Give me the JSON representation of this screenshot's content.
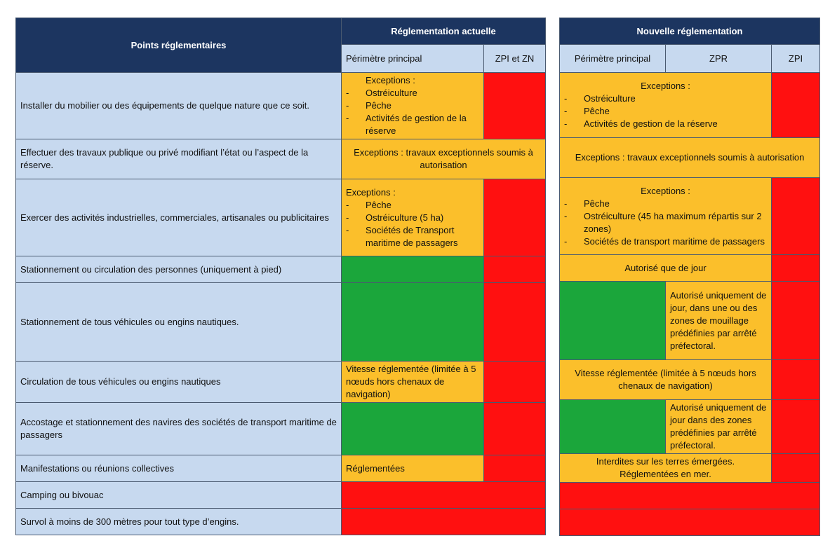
{
  "header": {
    "points": "Points réglementaires",
    "actuelle": "Réglementation actuelle",
    "nouvelle": "Nouvelle réglementation",
    "perimetre": "Périmètre principal",
    "zpi_zn": "ZPI et ZN",
    "zpr": "ZPR",
    "zpi": "ZPI"
  },
  "rows": [
    {
      "label": "Installer du mobilier ou des équipements de quelque nature que ce soit.",
      "actuelle": {
        "title": "Exceptions :",
        "items": [
          "Ostréiculture",
          "Pêche",
          "Activités de gestion de la réserve"
        ]
      },
      "nouvelle": {
        "title": "Exceptions :",
        "items": [
          "Ostréiculture",
          "Pêche",
          "Activités de gestion de la réserve"
        ]
      }
    },
    {
      "label": "Effectuer des travaux publique ou privé modifiant l’état ou l’aspect de la réserve.",
      "actuelle": {
        "text": "Exceptions : travaux exceptionnels soumis à autorisation"
      },
      "nouvelle": {
        "text": "Exceptions : travaux exceptionnels soumis à autorisation"
      }
    },
    {
      "label": "Exercer des activités industrielles, commerciales, artisanales ou publicitaires",
      "actuelle": {
        "title": "Exceptions :",
        "items": [
          "Pêche",
          "Ostréiculture (5 ha)",
          "Sociétés de Transport maritime de passagers"
        ]
      },
      "nouvelle": {
        "title": "Exceptions :",
        "items": [
          "Pêche",
          "Ostréiculture (45 ha maximum répartis sur 2 zones)",
          "Sociétés de transport maritime de passagers"
        ]
      }
    },
    {
      "label": "Stationnement ou circulation des personnes (uniquement à pied)",
      "nouvelle": {
        "text": "Autorisé que de jour"
      }
    },
    {
      "label": "Stationnement de tous véhicules ou engins nautiques.",
      "nouvelle": {
        "zpr": "Autorisé uniquement de jour, dans une ou des zones de mouillage prédéfinies par arrêté préfectoral."
      }
    },
    {
      "label": "Circulation de tous véhicules ou engins nautiques",
      "actuelle": {
        "text": "Vitesse réglementée (limitée à 5 nœuds hors chenaux de navigation)"
      },
      "nouvelle": {
        "text": "Vitesse réglementée (limitée à 5 nœuds hors chenaux de navigation)"
      }
    },
    {
      "label": "Accostage et stationnement des navires des sociétés de transport maritime de passagers",
      "nouvelle": {
        "zpr": "Autorisé uniquement de jour dans des zones prédéfinies par arrêté préfectoral."
      }
    },
    {
      "label": "Manifestations ou réunions collectives",
      "actuelle": {
        "text": "Réglementées"
      },
      "nouvelle": {
        "line1": "Interdites sur les terres émergées.",
        "line2": "Réglementées en mer."
      }
    },
    {
      "label": "Camping ou bivouac"
    },
    {
      "label": "Survol à moins de 300 mètres pour tout type d’engins."
    }
  ],
  "colors": {
    "red": "#ff1010",
    "orange": "#fbbf2b",
    "green": "#1ba63b",
    "navy": "#1c3560",
    "lightblue": "#c7d9ef"
  }
}
